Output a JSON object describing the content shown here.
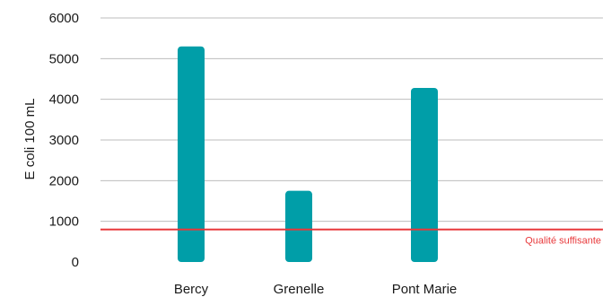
{
  "chart_data": {
    "type": "bar",
    "categories": [
      "Bercy",
      "Grenelle",
      "Pont Marie"
    ],
    "values": [
      5300,
      1750,
      4280
    ],
    "ylabel": "E coli 100 mL",
    "ylim": [
      0,
      6000
    ],
    "yticks": [
      "0",
      "1000",
      "2000",
      "3000",
      "4000",
      "5000",
      "6000"
    ],
    "grid": true,
    "bar_color": "#009ea8",
    "reference_line": {
      "value": 800,
      "label": "Qualité suffisante",
      "color": "#e8393b"
    }
  }
}
